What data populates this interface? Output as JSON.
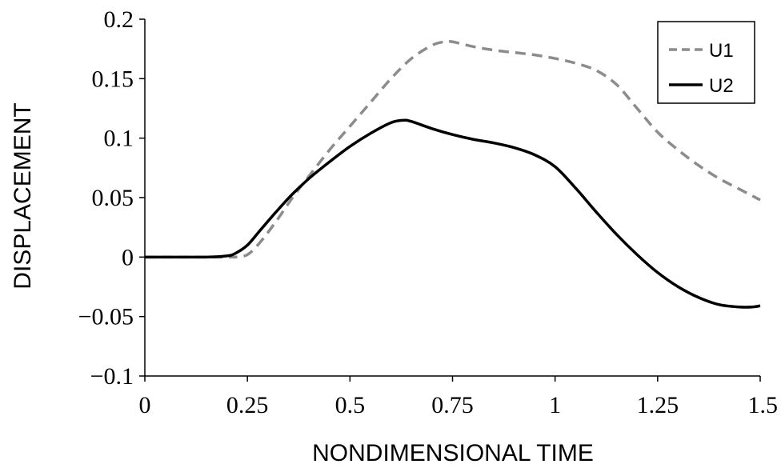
{
  "chart_data": {
    "type": "line",
    "xlabel": "NONDIMENSIONAL TIME",
    "ylabel": "DISPLACEMENT",
    "xlim": [
      0,
      1.5
    ],
    "ylim": [
      -0.1,
      0.2
    ],
    "xticks": [
      0,
      0.25,
      0.5,
      0.75,
      1,
      1.25,
      1.5
    ],
    "xtick_labels": [
      "0",
      "0.25",
      "0.5",
      "0.75",
      "1",
      "1.25",
      "1.5"
    ],
    "yticks": [
      0.2,
      0.15,
      0.1,
      0.05,
      0,
      -0.05,
      -0.1
    ],
    "ytick_labels": [
      "0.2",
      "0.15",
      "0.1",
      "0.05",
      "0",
      "−0.05",
      "−0.1"
    ],
    "grid": false,
    "legend_position": "top-right",
    "series": [
      {
        "name": "U1",
        "style": "dashed",
        "color": "#8c8c8c",
        "x": [
          0,
          0.2,
          0.22,
          0.25,
          0.28,
          0.32,
          0.36,
          0.4,
          0.45,
          0.5,
          0.55,
          0.6,
          0.65,
          0.7,
          0.73,
          0.75,
          0.8,
          0.85,
          0.9,
          0.95,
          1.0,
          1.05,
          1.1,
          1.15,
          1.2,
          1.25,
          1.3,
          1.35,
          1.4,
          1.45,
          1.5
        ],
        "y": [
          0,
          0,
          0,
          0.002,
          0.012,
          0.03,
          0.05,
          0.068,
          0.09,
          0.11,
          0.13,
          0.15,
          0.167,
          0.178,
          0.181,
          0.181,
          0.177,
          0.174,
          0.172,
          0.17,
          0.167,
          0.163,
          0.157,
          0.145,
          0.125,
          0.105,
          0.09,
          0.077,
          0.066,
          0.057,
          0.048
        ]
      },
      {
        "name": "U2",
        "style": "solid",
        "color": "#000000",
        "x": [
          0,
          0.15,
          0.2,
          0.22,
          0.25,
          0.28,
          0.32,
          0.36,
          0.4,
          0.45,
          0.5,
          0.55,
          0.6,
          0.63,
          0.65,
          0.7,
          0.75,
          0.8,
          0.85,
          0.9,
          0.95,
          1.0,
          1.05,
          1.1,
          1.15,
          1.2,
          1.25,
          1.3,
          1.35,
          1.4,
          1.45,
          1.48,
          1.5
        ],
        "y": [
          0,
          0,
          0.001,
          0.003,
          0.01,
          0.022,
          0.038,
          0.053,
          0.066,
          0.08,
          0.093,
          0.104,
          0.113,
          0.115,
          0.114,
          0.108,
          0.103,
          0.099,
          0.096,
          0.092,
          0.086,
          0.076,
          0.058,
          0.038,
          0.019,
          0.002,
          -0.013,
          -0.025,
          -0.034,
          -0.04,
          -0.042,
          -0.042,
          -0.041
        ]
      }
    ]
  }
}
